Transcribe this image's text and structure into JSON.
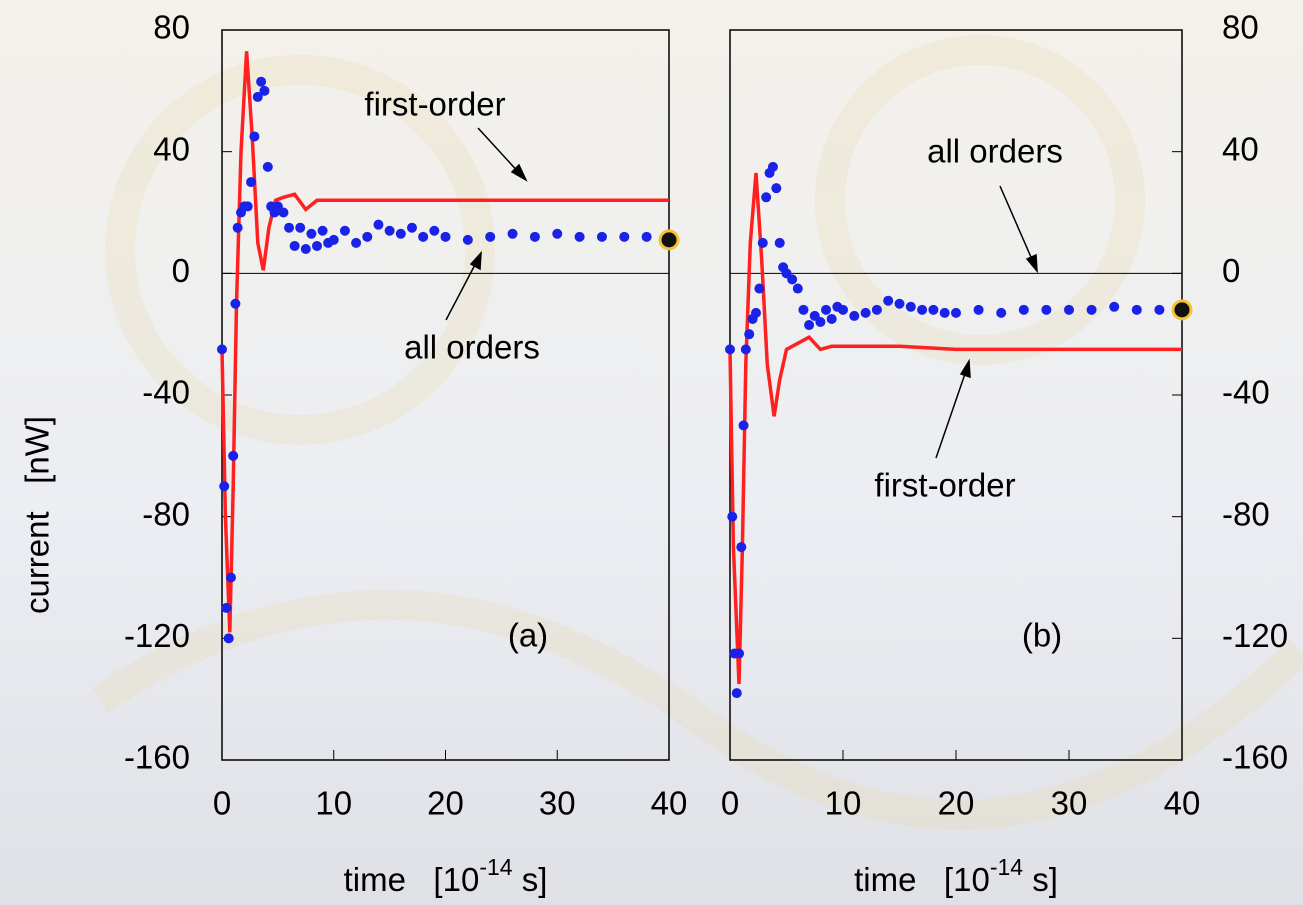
{
  "chart_data": [
    {
      "type": "line",
      "panel_label": "(a)",
      "ylabel": "current   [nW]",
      "xlabel": [
        "time   [10",
        "-14",
        " s]"
      ],
      "xlim": [
        0,
        40
      ],
      "ylim": [
        -160,
        80
      ],
      "xticks": [
        0,
        10,
        20,
        30,
        40
      ],
      "yticks": [
        80,
        40,
        0,
        -40,
        -80,
        -120,
        -160
      ],
      "ytick_side": "left",
      "hline": 0,
      "series": [
        {
          "name": "first-order",
          "color": "#ff2020",
          "style": "line",
          "x": [
            0,
            0.3,
            0.7,
            1.0,
            1.3,
            1.7,
            2.2,
            2.7,
            3.2,
            3.7,
            4.2,
            4.8,
            5.5,
            6.5,
            7.5,
            8.5,
            10,
            15,
            20,
            30,
            40
          ],
          "values": [
            -25,
            -80,
            -118,
            -70,
            -10,
            40,
            73,
            45,
            10,
            1,
            15,
            24,
            25,
            26,
            21,
            24,
            24,
            24,
            24,
            24,
            24
          ]
        },
        {
          "name": "all orders",
          "color": "#1a22e8",
          "style": "dots",
          "x": [
            0,
            0.2,
            0.4,
            0.6,
            0.8,
            1.0,
            1.2,
            1.4,
            1.7,
            2.0,
            2.3,
            2.6,
            2.9,
            3.2,
            3.5,
            3.8,
            4.1,
            4.4,
            4.7,
            5.0,
            5.5,
            6,
            6.5,
            7,
            7.5,
            8,
            8.5,
            9,
            9.5,
            10,
            11,
            12,
            13,
            14,
            15,
            16,
            17,
            18,
            19,
            20,
            22,
            24,
            26,
            28,
            30,
            32,
            34,
            36,
            38,
            40
          ],
          "values": [
            -25,
            -70,
            -110,
            -120,
            -100,
            -60,
            -10,
            15,
            20,
            22,
            22,
            30,
            45,
            58,
            63,
            60,
            35,
            22,
            20,
            22,
            20,
            15,
            9,
            15,
            8,
            13,
            9,
            14,
            10,
            11,
            14,
            10,
            12,
            16,
            14,
            13,
            15,
            12,
            14,
            12,
            11,
            12,
            13,
            12,
            13,
            12,
            12,
            12,
            12,
            11
          ]
        }
      ]
    },
    {
      "type": "line",
      "panel_label": "(b)",
      "xlabel": [
        "time   [10",
        "-14",
        " s]"
      ],
      "xlim": [
        0,
        40
      ],
      "ylim": [
        -160,
        80
      ],
      "xticks": [
        0,
        10,
        20,
        30,
        40
      ],
      "yticks": [
        80,
        40,
        0,
        -40,
        -80,
        -120,
        -160
      ],
      "ytick_side": "right",
      "hline": 0,
      "series": [
        {
          "name": "first-order",
          "color": "#ff2020",
          "style": "line",
          "x": [
            0,
            0.3,
            0.8,
            1.1,
            1.4,
            1.8,
            2.3,
            2.8,
            3.3,
            3.9,
            4.4,
            5,
            6,
            7,
            8,
            9,
            10,
            15,
            20,
            30,
            40
          ],
          "values": [
            -25,
            -90,
            -135,
            -90,
            -30,
            10,
            33,
            5,
            -30,
            -47,
            -35,
            -25,
            -23,
            -21,
            -25,
            -24,
            -24,
            -24,
            -25,
            -25,
            -25
          ]
        },
        {
          "name": "all orders",
          "color": "#1a22e8",
          "style": "dots",
          "x": [
            0,
            0.2,
            0.4,
            0.6,
            0.8,
            1.0,
            1.2,
            1.4,
            1.7,
            2.0,
            2.3,
            2.6,
            2.9,
            3.2,
            3.5,
            3.8,
            4.1,
            4.4,
            4.7,
            5.0,
            5.5,
            6,
            6.5,
            7,
            7.5,
            8,
            8.5,
            9,
            9.5,
            10,
            11,
            12,
            13,
            14,
            15,
            16,
            17,
            18,
            19,
            20,
            22,
            24,
            26,
            28,
            30,
            32,
            34,
            36,
            38,
            40
          ],
          "values": [
            -25,
            -80,
            -125,
            -138,
            -125,
            -90,
            -50,
            -25,
            -20,
            -15,
            -13,
            -5,
            10,
            25,
            33,
            35,
            28,
            10,
            2,
            0,
            -2,
            -5,
            -12,
            -17,
            -14,
            -16,
            -12,
            -15,
            -11,
            -12,
            -14,
            -13,
            -12,
            -9,
            -10,
            -11,
            -12,
            -12,
            -13,
            -13,
            -12,
            -13,
            -12,
            -12,
            -12,
            -12,
            -11,
            -12,
            -12,
            -12
          ]
        }
      ]
    }
  ]
}
